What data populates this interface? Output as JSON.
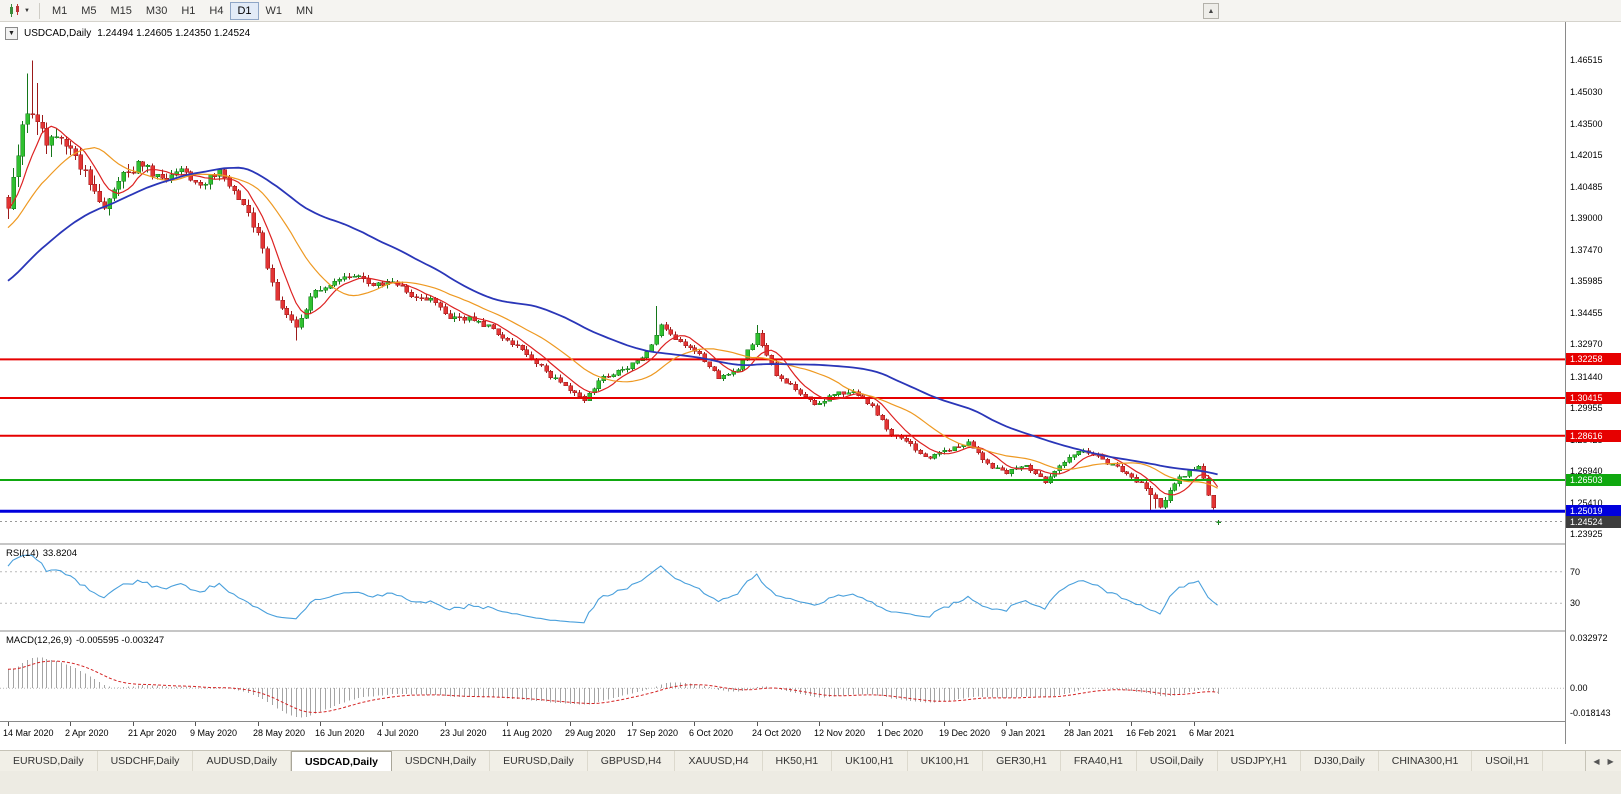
{
  "icons": {
    "dropdown": "▼",
    "up": "▲",
    "left": "◀",
    "right": "▶"
  },
  "toolbar": {
    "timeframes": [
      "M1",
      "M5",
      "M15",
      "M30",
      "H1",
      "H4",
      "D1",
      "W1",
      "MN"
    ],
    "active_timeframe": "D1"
  },
  "chart": {
    "title": "USDCAD,Daily",
    "ohlc": "1.24494 1.24605 1.24350 1.24524",
    "open": "1.24494",
    "high": "1.24605",
    "low": "1.24350",
    "close": "1.24524"
  },
  "price_axis": {
    "ticks": [
      "1.46515",
      "1.45030",
      "1.43500",
      "1.42015",
      "1.40485",
      "1.39000",
      "1.37470",
      "1.35985",
      "1.34455",
      "1.32970",
      "1.31440",
      "1.29955",
      "1.28425",
      "1.26940",
      "1.25410",
      "1.23925"
    ]
  },
  "levels": [
    {
      "label": "1.32258",
      "value": 1.32258,
      "color": "#e60000",
      "line_width": 2
    },
    {
      "label": "1.30415",
      "value": 1.30415,
      "color": "#e60000",
      "line_width": 2
    },
    {
      "label": "1.28616",
      "value": 1.28616,
      "color": "#e60000",
      "line_width": 2
    },
    {
      "label": "1.26503",
      "value": 1.26503,
      "color": "#0fa80f",
      "line_width": 2
    },
    {
      "label": "1.25019",
      "value": 1.25019,
      "color": "#0000dd",
      "line_width": 3
    }
  ],
  "current_price": {
    "label": "1.24524",
    "value": 1.24524,
    "color": "#3d3d3d"
  },
  "rsi": {
    "name": "RSI(14)",
    "value": "33.8204",
    "axis_labels": [
      "70",
      "30"
    ]
  },
  "macd": {
    "name": "MACD(12,26,9)",
    "values": "-0.005595 -0.003247",
    "axis_labels": [
      "0.032972",
      "0.00",
      "-0.018143"
    ]
  },
  "date_axis": {
    "labels": [
      "14 Mar 2020",
      "2 Apr 2020",
      "21 Apr 2020",
      "9 May 2020",
      "28 May 2020",
      "16 Jun 2020",
      "4 Jul 2020",
      "23 Jul 2020",
      "11 Aug 2020",
      "29 Aug 2020",
      "17 Sep 2020",
      "6 Oct 2020",
      "24 Oct 2020",
      "12 Nov 2020",
      "1 Dec 2020",
      "19 Dec 2020",
      "9 Jan 2021",
      "28 Jan 2021",
      "16 Feb 2021",
      "6 Mar 2021"
    ],
    "candles_per_tick": 13
  },
  "tabs": {
    "items": [
      "EURUSD,Daily",
      "USDCHF,Daily",
      "AUDUSD,Daily",
      "USDCAD,Daily",
      "USDCNH,Daily",
      "EURUSD,Daily",
      "GBPUSD,H4",
      "XAUUSD,H4",
      "HK50,H1",
      "UK100,H1",
      "UK100,H1",
      "GER30,H1",
      "FRA40,H1",
      "USOil,Daily",
      "USDJPY,H1",
      "DJ30,Daily",
      "CHINA300,H1",
      "USOil,H1"
    ],
    "active_index": 3
  },
  "colors": {
    "bull_fill": "#30c030",
    "bull_line": "#14761a",
    "bear_fill": "#e23434",
    "bear_line": "#9c1a1a",
    "background": "#ffffff"
  },
  "chart_data": {
    "type": "candlestick",
    "symbol": "USDCAD",
    "timeframe": "Daily",
    "title": "USDCAD,Daily",
    "x_range": [
      "14 Mar 2020",
      "16 Mar 2021"
    ],
    "y_range": [
      1.235,
      1.4835
    ],
    "num_candles": 253,
    "anchor_step": 4,
    "close_anchors": [
      1.398,
      1.4435,
      1.4285,
      1.4255,
      1.4105,
      1.3945,
      1.4125,
      1.4155,
      1.4075,
      1.4125,
      1.4065,
      1.4115,
      1.4005,
      1.3825,
      1.3505,
      1.3385,
      1.3555,
      1.3595,
      1.3635,
      1.3575,
      1.3605,
      1.3535,
      1.3505,
      1.3425,
      1.3425,
      1.3385,
      1.3315,
      1.3255,
      1.3165,
      1.3095,
      1.3035,
      1.3145,
      1.3175,
      1.3225,
      1.3385,
      1.3305,
      1.3245,
      1.3135,
      1.3185,
      1.3345,
      1.3155,
      1.3085,
      1.3005,
      1.3065,
      1.3075,
      1.3005,
      1.2865,
      1.2815,
      1.2755,
      1.2795,
      1.2835,
      1.2725,
      1.2685,
      1.2715,
      1.2645,
      1.2735,
      1.2795,
      1.2745,
      1.2695,
      1.2635,
      1.2525,
      1.2665,
      1.2715,
      1.2455
    ],
    "last_candle": {
      "o": 1.24494,
      "h": 1.24605,
      "l": 1.2435,
      "c": 1.24524
    },
    "spikes": [
      {
        "i": 4,
        "h": 1.459
      },
      {
        "i": 5,
        "h": 1.4651
      },
      {
        "i": 6,
        "h": 1.4545
      },
      {
        "i": 60,
        "l": 1.3315
      },
      {
        "i": 135,
        "h": 1.348
      },
      {
        "i": 156,
        "h": 1.339
      },
      {
        "i": 238,
        "l": 1.2502
      },
      {
        "i": 239,
        "l": 1.2515
      }
    ],
    "warmup_from": 1.298,
    "warmup_bars": 60,
    "plot_left": 8,
    "candle_spacing": 4.8,
    "moving_averages": [
      {
        "period": 7,
        "color": "#dd2222",
        "width": 1.2
      },
      {
        "period": 18,
        "color": "#ee9922",
        "width": 1.2
      },
      {
        "period": 48,
        "color": "#2a36b8",
        "width": 1.8
      }
    ],
    "rsi": {
      "period": 14,
      "color": "#4aa0dc",
      "levels": [
        70,
        30
      ],
      "last_value": 33.8204
    },
    "macd": {
      "fast": 12,
      "slow": 26,
      "signal": 9,
      "scale": [
        0.032972,
        -0.018143
      ],
      "last_macd": -0.005595,
      "last_signal": -0.003247
    },
    "horizontal_lines": [
      1.32258,
      1.30415,
      1.28616,
      1.26503,
      1.25019
    ]
  }
}
